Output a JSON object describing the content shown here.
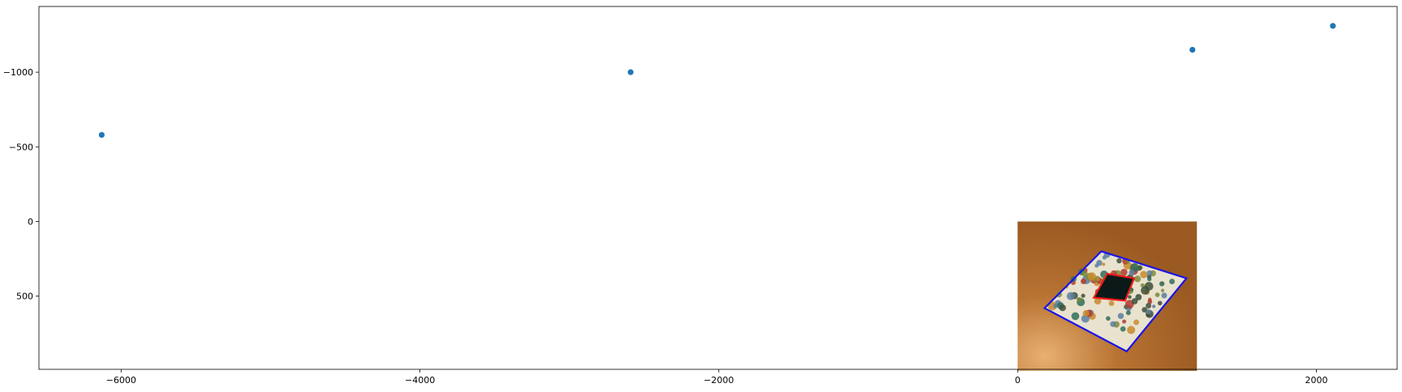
{
  "chart_data": {
    "type": "scatter",
    "title": "",
    "xlabel": "",
    "ylabel": "",
    "xlim": [
      -6550,
      2540
    ],
    "ylim": [
      990,
      -1440
    ],
    "y_inverted": true,
    "grid": false,
    "legend": "none",
    "x_ticks": [
      -6000,
      -4000,
      -2000,
      0,
      2000
    ],
    "x_tick_labels": [
      "−6000",
      "−4000",
      "−2000",
      "0",
      "2000"
    ],
    "y_ticks": [
      -1000,
      -500,
      0,
      500
    ],
    "y_tick_labels": [
      "−1000",
      "−500",
      "0",
      "500"
    ],
    "series": [
      {
        "color": "#1f77b4",
        "x": [
          -6130,
          -2590,
          1170,
          2110
        ],
        "y": [
          -580,
          -1000,
          -1150,
          -1310
        ]
      }
    ],
    "inset_image": {
      "description_icon": "photo-icon",
      "extent": [
        0,
        1200,
        0,
        1000
      ],
      "colors": {
        "table": "#b06a2a",
        "outer_border": "#1a14e6",
        "inner_border": "#f01818",
        "inner_fill": "#0b1a18"
      },
      "outer_quad": [
        [
          560,
          200
        ],
        [
          1130,
          380
        ],
        [
          730,
          870
        ],
        [
          180,
          580
        ]
      ],
      "inner_quad": [
        [
          600,
          350
        ],
        [
          780,
          380
        ],
        [
          720,
          530
        ],
        [
          510,
          510
        ]
      ]
    }
  }
}
